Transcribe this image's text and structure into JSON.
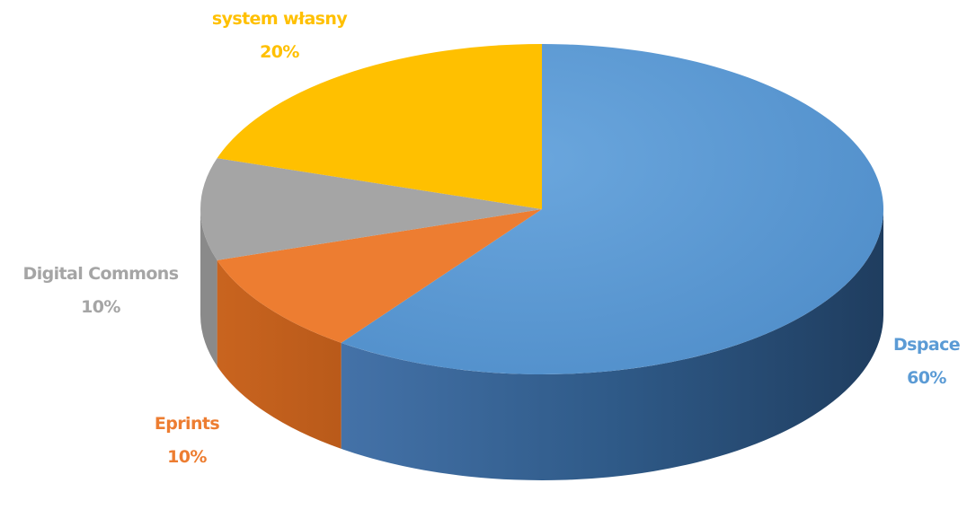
{
  "chart_data": {
    "type": "pie",
    "style": "3d",
    "title": "",
    "categories": [
      "Dspace",
      "Eprints",
      "Digital Commons",
      "system własny"
    ],
    "values": [
      60,
      10,
      10,
      20
    ],
    "labels": [
      "60%",
      "10%",
      "10%",
      "20%"
    ],
    "colors": [
      "#5b9bd5",
      "#ed7d31",
      "#a5a5a5",
      "#ffc000"
    ],
    "legend": "none",
    "data_labels": "outside"
  }
}
